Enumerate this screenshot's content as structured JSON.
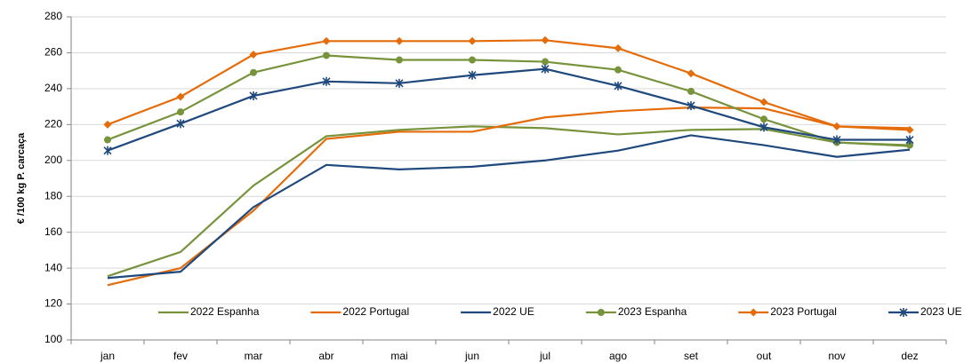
{
  "chart_data": {
    "type": "line",
    "y_label": "€ /100 kg P. carcaça",
    "categories": [
      "jan",
      "fev",
      "mar",
      "abr",
      "mai",
      "jun",
      "jul",
      "ago",
      "set",
      "out",
      "nov",
      "dez"
    ],
    "ylim": [
      100,
      280
    ],
    "yticks": [
      100,
      120,
      140,
      160,
      180,
      200,
      220,
      240,
      260,
      280
    ],
    "grid": true,
    "legend": "bottom",
    "series": [
      {
        "name": "2022 Espanha",
        "color": "#77933c",
        "marker": "none",
        "values": [
          135.5,
          149,
          186,
          213.5,
          217,
          219,
          218,
          214.5,
          217,
          217.5,
          210,
          208
        ]
      },
      {
        "name": "2022 Portugal",
        "color": "#e46c0a",
        "marker": "none",
        "values": [
          130.5,
          140,
          172,
          212,
          216,
          216,
          224,
          227.5,
          229.5,
          229,
          219,
          218
        ]
      },
      {
        "name": "2022 UE",
        "color": "#1f497d",
        "marker": "none",
        "values": [
          134.5,
          138,
          174,
          197.5,
          195,
          196.5,
          200,
          205.5,
          214,
          208.5,
          202,
          206
        ]
      },
      {
        "name": "2023 Espanha",
        "color": "#77933c",
        "marker": "circle",
        "values": [
          211.5,
          227,
          249,
          258.5,
          256,
          256,
          255,
          250.5,
          238.5,
          223,
          210,
          208.5
        ]
      },
      {
        "name": "2023 Portugal",
        "color": "#e46c0a",
        "marker": "diamond",
        "values": [
          220,
          235.5,
          259,
          266.5,
          266.5,
          266.5,
          267,
          262.5,
          248.5,
          232.5,
          219,
          217
        ]
      },
      {
        "name": "2023 UE",
        "color": "#1f497d",
        "marker": "star",
        "values": [
          205.5,
          220.5,
          236,
          244,
          243,
          247.5,
          251,
          241.5,
          230.5,
          218.5,
          211.5,
          211.5
        ]
      }
    ]
  }
}
